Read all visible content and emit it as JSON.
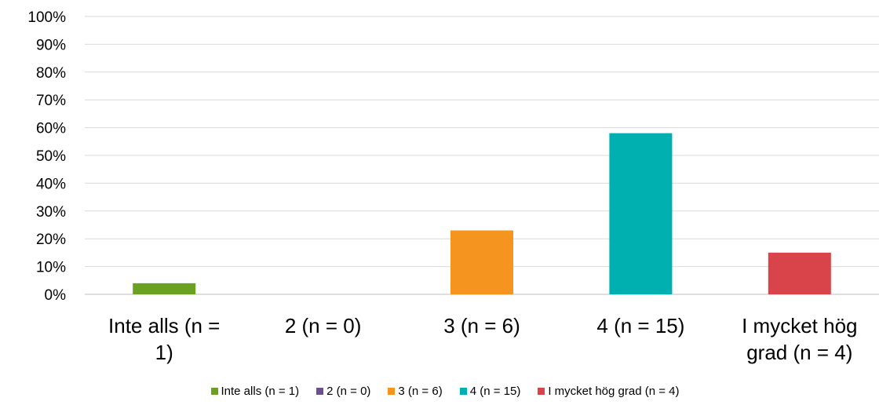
{
  "chart_data": {
    "type": "bar",
    "categories": [
      "Inte alls (n = 1)",
      "2 (n = 0)",
      "3 (n = 6)",
      "4 (n = 15)",
      "I mycket hög grad (n = 4)"
    ],
    "category_label_lines": [
      [
        "Inte alls (n =",
        "1)"
      ],
      [
        "2 (n = 0)"
      ],
      [
        "3 (n = 6)"
      ],
      [
        "4 (n = 15)"
      ],
      [
        "I mycket hög",
        "grad (n = 4)"
      ]
    ],
    "values": [
      4,
      0,
      23,
      58,
      15
    ],
    "colors": [
      "#6aa121",
      "#6c4f8f",
      "#f5951f",
      "#00b0b1",
      "#d8444a"
    ],
    "ylim": [
      0,
      100
    ],
    "yticks": [
      "0%",
      "10%",
      "20%",
      "30%",
      "40%",
      "50%",
      "60%",
      "70%",
      "80%",
      "90%",
      "100%"
    ],
    "legend": [
      {
        "label": "Inte alls (n = 1)",
        "color": "#6aa121"
      },
      {
        "label": "2 (n = 0)",
        "color": "#6c4f8f"
      },
      {
        "label": "3 (n = 6)",
        "color": "#f5951f"
      },
      {
        "label": "4 (n = 15)",
        "color": "#00b0b1"
      },
      {
        "label": "I mycket hög grad (n = 4)",
        "color": "#d8444a"
      }
    ],
    "legend_position": "bottom",
    "grid": true
  }
}
